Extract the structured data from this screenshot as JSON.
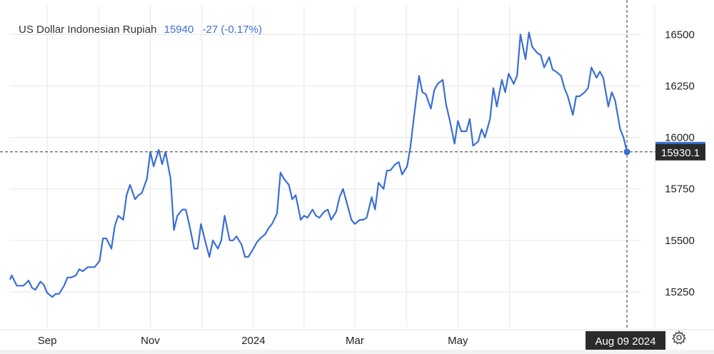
{
  "header": {
    "title": "US Dollar Indonesian Rupiah",
    "price": "15940",
    "change": "-27 (-0.17%)"
  },
  "crosshair": {
    "date_label": "Aug 09 2024",
    "value_label": "15930.1",
    "value": 15930.1
  },
  "colors": {
    "line": "#3a6fd4",
    "grid": "#e6e6e6",
    "label_bg": "#2b2b2b",
    "label_text": "#ffffff",
    "axis_text": "#222222"
  },
  "icons": {
    "settings": "gear-icon"
  },
  "chart_data": {
    "type": "line",
    "title": "US Dollar Indonesian Rupiah",
    "x_ticks": [
      {
        "label": "Sep",
        "date": "2023-09-01"
      },
      {
        "label": "Nov",
        "date": "2023-11-01"
      },
      {
        "label": "2024",
        "date": "2024-01-01"
      },
      {
        "label": "Mar",
        "date": "2024-03-01"
      },
      {
        "label": "May",
        "date": "2024-05-01"
      }
    ],
    "y_ticks": [
      15250,
      15500,
      15750,
      16000,
      16250,
      16500
    ],
    "xlim": [
      "2023-08-10",
      "2024-08-17"
    ],
    "ylim": [
      15080,
      16640
    ],
    "grid": true,
    "legend": "none",
    "series": [
      {
        "points": [
          [
            "2023-08-10",
            15310
          ],
          [
            "2023-08-11",
            15330
          ],
          [
            "2023-08-14",
            15280
          ],
          [
            "2023-08-16",
            15280
          ],
          [
            "2023-08-18",
            15280
          ],
          [
            "2023-08-21",
            15305
          ],
          [
            "2023-08-23",
            15270
          ],
          [
            "2023-08-25",
            15260
          ],
          [
            "2023-08-28",
            15300
          ],
          [
            "2023-08-30",
            15285
          ],
          [
            "2023-09-01",
            15245
          ],
          [
            "2023-09-04",
            15225
          ],
          [
            "2023-09-06",
            15240
          ],
          [
            "2023-09-08",
            15240
          ],
          [
            "2023-09-11",
            15280
          ],
          [
            "2023-09-13",
            15320
          ],
          [
            "2023-09-15",
            15320
          ],
          [
            "2023-09-18",
            15330
          ],
          [
            "2023-09-20",
            15360
          ],
          [
            "2023-09-22",
            15350
          ],
          [
            "2023-09-25",
            15370
          ],
          [
            "2023-09-27",
            15370
          ],
          [
            "2023-09-29",
            15370
          ],
          [
            "2023-10-02",
            15400
          ],
          [
            "2023-10-04",
            15510
          ],
          [
            "2023-10-06",
            15510
          ],
          [
            "2023-10-09",
            15460
          ],
          [
            "2023-10-11",
            15570
          ],
          [
            "2023-10-13",
            15620
          ],
          [
            "2023-10-16",
            15600
          ],
          [
            "2023-10-18",
            15720
          ],
          [
            "2023-10-20",
            15770
          ],
          [
            "2023-10-23",
            15700
          ],
          [
            "2023-10-25",
            15720
          ],
          [
            "2023-10-27",
            15730
          ],
          [
            "2023-10-30",
            15800
          ],
          [
            "2023-11-01",
            15930
          ],
          [
            "2023-11-03",
            15860
          ],
          [
            "2023-11-06",
            15940
          ],
          [
            "2023-11-08",
            15870
          ],
          [
            "2023-11-10",
            15930
          ],
          [
            "2023-11-13",
            15800
          ],
          [
            "2023-11-15",
            15550
          ],
          [
            "2023-11-17",
            15620
          ],
          [
            "2023-11-20",
            15650
          ],
          [
            "2023-11-22",
            15650
          ],
          [
            "2023-11-24",
            15580
          ],
          [
            "2023-11-27",
            15460
          ],
          [
            "2023-11-29",
            15460
          ],
          [
            "2023-12-01",
            15580
          ],
          [
            "2023-12-04",
            15480
          ],
          [
            "2023-12-06",
            15420
          ],
          [
            "2023-12-08",
            15500
          ],
          [
            "2023-12-11",
            15460
          ],
          [
            "2023-12-13",
            15500
          ],
          [
            "2023-12-15",
            15620
          ],
          [
            "2023-12-18",
            15500
          ],
          [
            "2023-12-20",
            15500
          ],
          [
            "2023-12-22",
            15520
          ],
          [
            "2023-12-25",
            15480
          ],
          [
            "2023-12-27",
            15420
          ],
          [
            "2023-12-29",
            15420
          ],
          [
            "2024-01-01",
            15460
          ],
          [
            "2024-01-03",
            15490
          ],
          [
            "2024-01-05",
            15510
          ],
          [
            "2024-01-08",
            15530
          ],
          [
            "2024-01-10",
            15560
          ],
          [
            "2024-01-12",
            15580
          ],
          [
            "2024-01-15",
            15630
          ],
          [
            "2024-01-17",
            15830
          ],
          [
            "2024-01-19",
            15800
          ],
          [
            "2024-01-22",
            15770
          ],
          [
            "2024-01-24",
            15700
          ],
          [
            "2024-01-26",
            15720
          ],
          [
            "2024-01-29",
            15600
          ],
          [
            "2024-01-31",
            15620
          ],
          [
            "2024-02-02",
            15610
          ],
          [
            "2024-02-05",
            15650
          ],
          [
            "2024-02-07",
            15620
          ],
          [
            "2024-02-09",
            15610
          ],
          [
            "2024-02-12",
            15640
          ],
          [
            "2024-02-14",
            15650
          ],
          [
            "2024-02-16",
            15600
          ],
          [
            "2024-02-19",
            15640
          ],
          [
            "2024-02-21",
            15710
          ],
          [
            "2024-02-23",
            15750
          ],
          [
            "2024-02-26",
            15660
          ],
          [
            "2024-02-28",
            15600
          ],
          [
            "2024-03-01",
            15580
          ],
          [
            "2024-03-04",
            15600
          ],
          [
            "2024-03-06",
            15600
          ],
          [
            "2024-03-08",
            15610
          ],
          [
            "2024-03-11",
            15710
          ],
          [
            "2024-03-13",
            15650
          ],
          [
            "2024-03-15",
            15780
          ],
          [
            "2024-03-18",
            15750
          ],
          [
            "2024-03-20",
            15840
          ],
          [
            "2024-03-22",
            15840
          ],
          [
            "2024-03-25",
            15870
          ],
          [
            "2024-03-27",
            15880
          ],
          [
            "2024-03-29",
            15820
          ],
          [
            "2024-04-01",
            15860
          ],
          [
            "2024-04-03",
            15960
          ],
          [
            "2024-04-05",
            16100
          ],
          [
            "2024-04-08",
            16300
          ],
          [
            "2024-04-10",
            16220
          ],
          [
            "2024-04-12",
            16210
          ],
          [
            "2024-04-15",
            16140
          ],
          [
            "2024-04-17",
            16230
          ],
          [
            "2024-04-19",
            16260
          ],
          [
            "2024-04-22",
            16280
          ],
          [
            "2024-04-24",
            16160
          ],
          [
            "2024-04-26",
            16090
          ],
          [
            "2024-04-29",
            15970
          ],
          [
            "2024-05-01",
            16080
          ],
          [
            "2024-05-03",
            16030
          ],
          [
            "2024-05-06",
            16030
          ],
          [
            "2024-05-08",
            16090
          ],
          [
            "2024-05-10",
            15960
          ],
          [
            "2024-05-13",
            15980
          ],
          [
            "2024-05-15",
            16040
          ],
          [
            "2024-05-17",
            16000
          ],
          [
            "2024-05-20",
            16090
          ],
          [
            "2024-05-22",
            16240
          ],
          [
            "2024-05-24",
            16150
          ],
          [
            "2024-05-27",
            16280
          ],
          [
            "2024-05-29",
            16220
          ],
          [
            "2024-05-31",
            16310
          ],
          [
            "2024-06-03",
            16260
          ],
          [
            "2024-06-05",
            16300
          ],
          [
            "2024-06-07",
            16500
          ],
          [
            "2024-06-10",
            16380
          ],
          [
            "2024-06-12",
            16510
          ],
          [
            "2024-06-14",
            16440
          ],
          [
            "2024-06-17",
            16410
          ],
          [
            "2024-06-19",
            16400
          ],
          [
            "2024-06-21",
            16340
          ],
          [
            "2024-06-24",
            16390
          ],
          [
            "2024-06-26",
            16330
          ],
          [
            "2024-06-28",
            16320
          ],
          [
            "2024-07-01",
            16300
          ],
          [
            "2024-07-03",
            16240
          ],
          [
            "2024-07-05",
            16200
          ],
          [
            "2024-07-08",
            16110
          ],
          [
            "2024-07-10",
            16200
          ],
          [
            "2024-07-12",
            16200
          ],
          [
            "2024-07-15",
            16220
          ],
          [
            "2024-07-17",
            16240
          ],
          [
            "2024-07-19",
            16340
          ],
          [
            "2024-07-22",
            16290
          ],
          [
            "2024-07-24",
            16320
          ],
          [
            "2024-07-26",
            16290
          ],
          [
            "2024-07-29",
            16150
          ],
          [
            "2024-07-31",
            16220
          ],
          [
            "2024-08-02",
            16180
          ],
          [
            "2024-08-05",
            16040
          ],
          [
            "2024-08-07",
            16000
          ],
          [
            "2024-08-09",
            15930.1
          ]
        ]
      }
    ]
  }
}
